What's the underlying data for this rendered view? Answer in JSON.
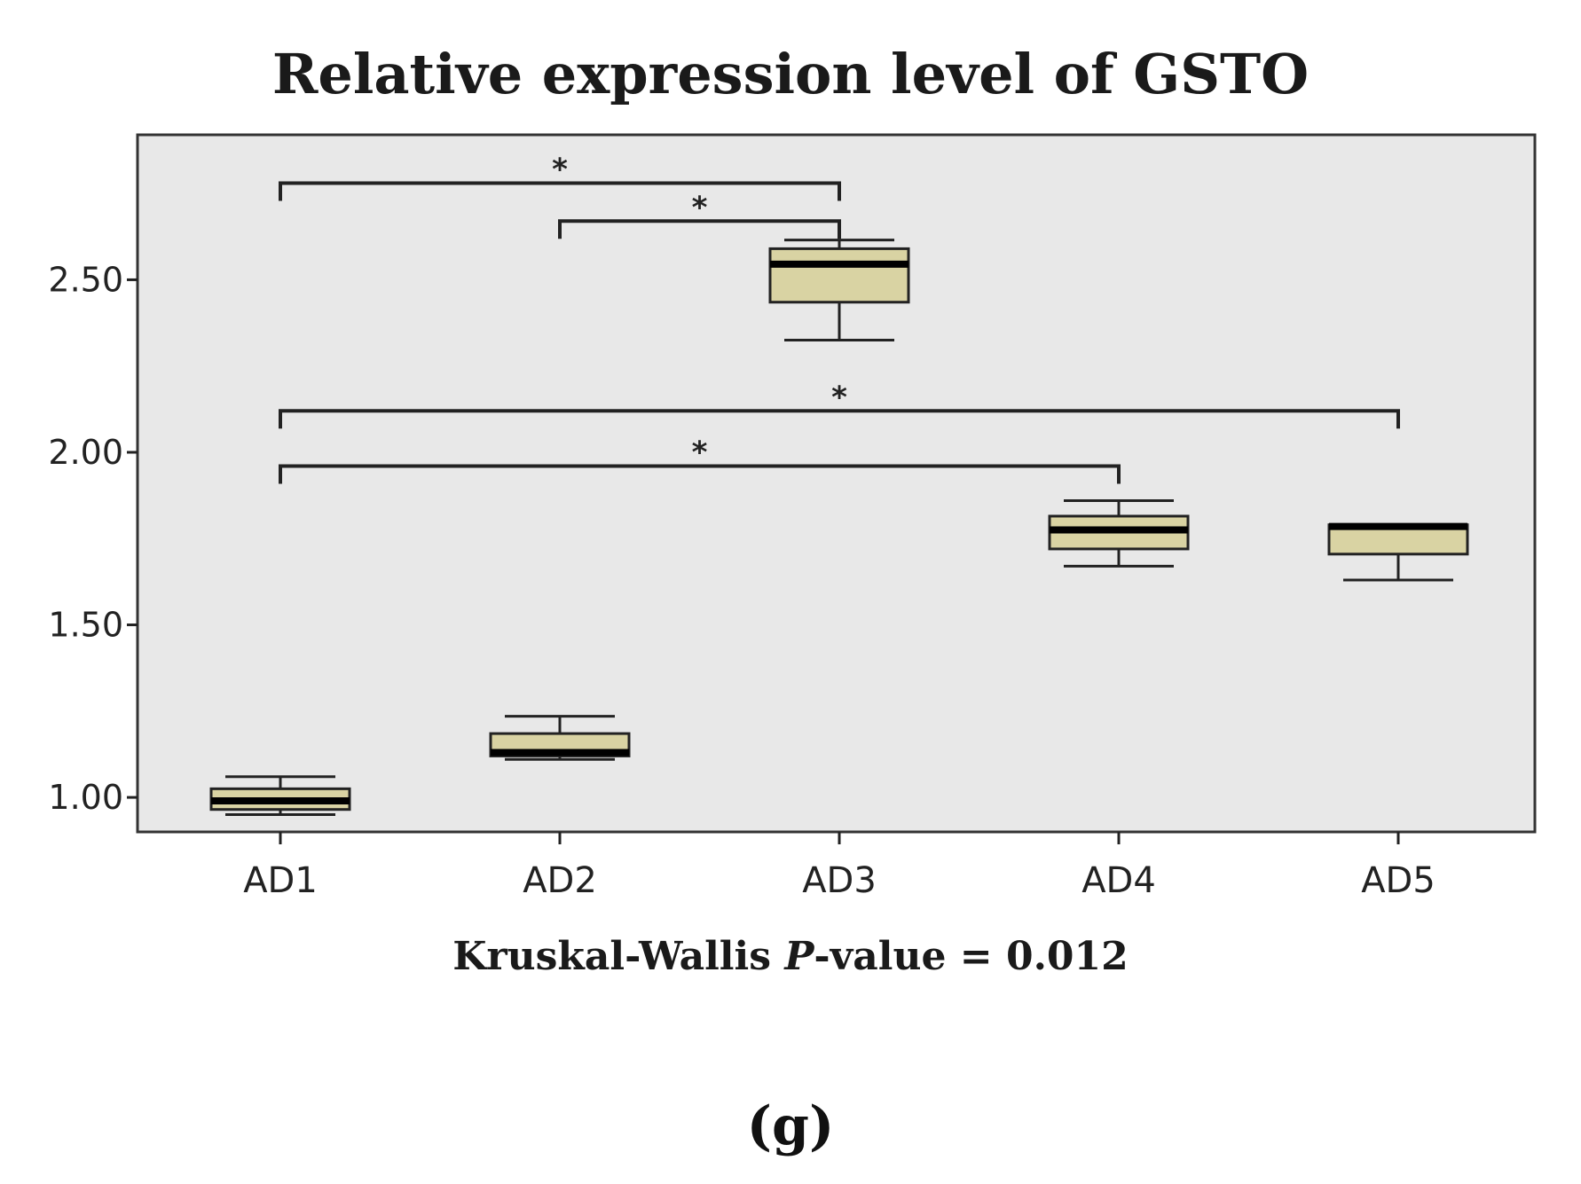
{
  "chart_data": {
    "type": "box",
    "title": "Relative expression level of GSTO",
    "xlabel_prefix": "Kruskal-Wallis ",
    "xlabel_italic": "P",
    "xlabel_suffix": "-value = 0.012",
    "panel_label": "(g)",
    "categories": [
      "AD1",
      "AD2",
      "AD3",
      "AD4",
      "AD5"
    ],
    "y_ticks": [
      1.0,
      1.5,
      2.0,
      2.5
    ],
    "y_tick_labels": [
      "1.00",
      "1.50",
      "2.00",
      "2.50"
    ],
    "ylim": [
      0.9,
      2.92
    ],
    "boxes": [
      {
        "name": "AD1",
        "min": 0.95,
        "q1": 0.965,
        "median": 0.99,
        "q3": 1.025,
        "max": 1.06
      },
      {
        "name": "AD2",
        "min": 1.11,
        "q1": 1.12,
        "median": 1.13,
        "q3": 1.185,
        "max": 1.235
      },
      {
        "name": "AD3",
        "min": 2.325,
        "q1": 2.435,
        "median": 2.545,
        "q3": 2.59,
        "max": 2.615
      },
      {
        "name": "AD4",
        "min": 1.67,
        "q1": 1.72,
        "median": 1.775,
        "q3": 1.815,
        "max": 1.86
      },
      {
        "name": "AD5",
        "min": 1.63,
        "q1": 1.705,
        "median": 1.785,
        "q3": 1.79,
        "max": 1.79
      }
    ],
    "significance": [
      {
        "from": "AD1",
        "to": "AD3",
        "y": 2.78,
        "label": "*"
      },
      {
        "from": "AD2",
        "to": "AD3",
        "y": 2.67,
        "label": "*"
      },
      {
        "from": "AD1",
        "to": "AD5",
        "y": 2.12,
        "label": "*"
      },
      {
        "from": "AD1",
        "to": "AD4",
        "y": 1.96,
        "label": "*"
      }
    ],
    "colors": {
      "panel_bg": "#e8e8e8",
      "box_fill": "#d9d3a3",
      "stroke": "#222222"
    }
  }
}
